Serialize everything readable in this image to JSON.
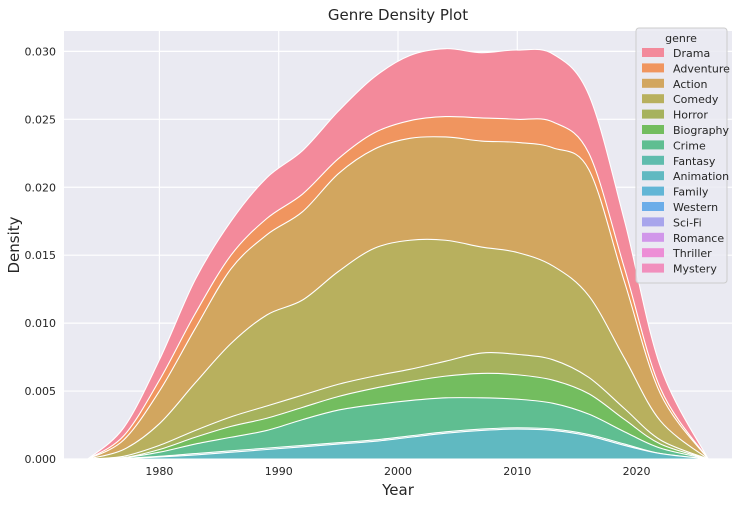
{
  "chart_data": {
    "type": "area",
    "stacked": true,
    "title": "Genre Density Plot",
    "xlabel": "Year",
    "ylabel": "Density",
    "xlim": [
      1972,
      2028
    ],
    "ylim": [
      0,
      0.0315
    ],
    "xticks": [
      1980,
      1990,
      2000,
      2010,
      2020
    ],
    "yticks": [
      0.0,
      0.005,
      0.01,
      0.015,
      0.02,
      0.025,
      0.03
    ],
    "ytick_labels": [
      "0.000",
      "0.005",
      "0.010",
      "0.015",
      "0.020",
      "0.025",
      "0.030"
    ],
    "grid": true,
    "legend": {
      "title": "genre",
      "placement": "top-right"
    },
    "x": [
      1974,
      1977,
      1980,
      1983,
      1986,
      1989,
      1992,
      1995,
      1998,
      2001,
      2004,
      2007,
      2010,
      2013,
      2016,
      2019,
      2022,
      2026
    ],
    "series": [
      {
        "name": "Drama",
        "color": "#f38a9b",
        "cumulative": [
          0,
          0.0023,
          0.0073,
          0.0132,
          0.0175,
          0.0207,
          0.0227,
          0.0256,
          0.0281,
          0.0297,
          0.0302,
          0.0299,
          0.0301,
          0.0298,
          0.0268,
          0.0175,
          0.0068,
          0
        ]
      },
      {
        "name": "Adventure",
        "color": "#f0955f",
        "cumulative": [
          0,
          0.0017,
          0.0058,
          0.0107,
          0.015,
          0.0177,
          0.0195,
          0.0221,
          0.024,
          0.0249,
          0.0252,
          0.0251,
          0.025,
          0.0248,
          0.0225,
          0.014,
          0.0052,
          0
        ]
      },
      {
        "name": "Action",
        "color": "#d2a65f",
        "cumulative": [
          0,
          0.0014,
          0.005,
          0.0096,
          0.014,
          0.0165,
          0.0182,
          0.021,
          0.0228,
          0.0236,
          0.0237,
          0.0234,
          0.0233,
          0.0229,
          0.0213,
          0.013,
          0.0048,
          0
        ]
      },
      {
        "name": "Comedy",
        "color": "#b8b05e",
        "cumulative": [
          0,
          0.0007,
          0.0026,
          0.0056,
          0.0085,
          0.0106,
          0.0117,
          0.0138,
          0.0155,
          0.0161,
          0.0161,
          0.0156,
          0.0152,
          0.0142,
          0.012,
          0.0074,
          0.0028,
          0
        ]
      },
      {
        "name": "Horror",
        "color": "#a6b25d",
        "cumulative": [
          0,
          0.0002,
          0.001,
          0.0021,
          0.0031,
          0.0039,
          0.0047,
          0.0055,
          0.0061,
          0.0066,
          0.0072,
          0.0078,
          0.0077,
          0.0073,
          0.006,
          0.0037,
          0.0014,
          0
        ]
      },
      {
        "name": "Biography",
        "color": "#73bd5f",
        "cumulative": [
          0,
          0.0001,
          0.0007,
          0.0016,
          0.0024,
          0.003,
          0.0038,
          0.0046,
          0.0052,
          0.0057,
          0.0061,
          0.0063,
          0.0062,
          0.0058,
          0.0048,
          0.0029,
          0.0011,
          0
        ]
      },
      {
        "name": "Crime",
        "color": "#5fbe91",
        "cumulative": [
          0,
          0.0001,
          0.0005,
          0.0011,
          0.0016,
          0.0021,
          0.0029,
          0.0036,
          0.004,
          0.0043,
          0.0045,
          0.0045,
          0.0044,
          0.0041,
          0.0033,
          0.002,
          0.0008,
          0
        ]
      },
      {
        "name": "Fantasy",
        "color": "#5fbcad",
        "cumulative": [
          0,
          5e-05,
          0.0002,
          0.0004,
          0.0006,
          0.0008,
          0.001,
          0.0012,
          0.0014,
          0.0017,
          0.002,
          0.0022,
          0.0023,
          0.0022,
          0.0018,
          0.0011,
          0.0004,
          0
        ]
      },
      {
        "name": "Animation",
        "color": "#60b9c1",
        "cumulative": [
          0,
          4e-05,
          0.00015,
          0.0003,
          0.0005,
          0.0007,
          0.0009,
          0.0011,
          0.0013,
          0.0016,
          0.0019,
          0.0021,
          0.0022,
          0.0021,
          0.0017,
          0.001,
          0.0004,
          0
        ]
      },
      {
        "name": "Family",
        "color": "#62b6d6",
        "cumulative": [
          0,
          0,
          0,
          0,
          0,
          0,
          0,
          0,
          0,
          0,
          0,
          0,
          0,
          0,
          0,
          0,
          0,
          0
        ]
      },
      {
        "name": "Western",
        "color": "#6bade9",
        "cumulative": [
          0,
          0,
          0,
          0,
          0,
          0,
          0,
          0,
          0,
          0,
          0,
          0,
          0,
          0,
          0,
          0,
          0,
          0
        ]
      },
      {
        "name": "Sci-Fi",
        "color": "#a8a5ec",
        "cumulative": [
          0,
          0,
          0,
          0,
          0,
          0,
          0,
          0,
          0,
          0,
          0,
          0,
          0,
          0,
          0,
          0,
          0,
          0
        ]
      },
      {
        "name": "Romance",
        "color": "#d197ea",
        "cumulative": [
          0,
          0,
          0,
          0,
          0,
          0,
          0,
          0,
          0,
          0,
          0,
          0,
          0,
          0,
          0,
          0,
          0,
          0
        ]
      },
      {
        "name": "Thriller",
        "color": "#ed8ed6",
        "cumulative": [
          0,
          0,
          0,
          0,
          0,
          0,
          0,
          0,
          0,
          0,
          0,
          0,
          0,
          0,
          0,
          0,
          0,
          0
        ]
      },
      {
        "name": "Mystery",
        "color": "#f18fbd",
        "cumulative": [
          0,
          0,
          0,
          0,
          0,
          0,
          0,
          0,
          0,
          0,
          0,
          0,
          0,
          0,
          0,
          0,
          0,
          0
        ]
      }
    ]
  }
}
